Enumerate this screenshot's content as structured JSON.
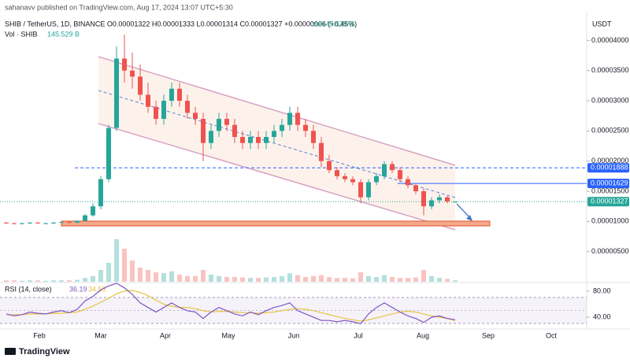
{
  "chart_data": {
    "type": "candlestick",
    "published": "sahanavv published on TradingView.com, Aug 17, 2024 13:07 UTC+5:30",
    "header": "SHIB / TetherUS, 1D, BINANCE  O0.00001322 H0.00001333 L0.00001314 C0.00001327 +0.00000006 (+0.45%)",
    "header_volume": "Vol145.529 B",
    "volume_label": "Vol · SHIB",
    "volume_value": "145.529 B",
    "currency": "USDT",
    "up_color": "#26a69a",
    "down_color": "#ef5350",
    "candles": {
      "open": [
        9.8e-06,
        9.7e-06,
        9.6e-06,
        9.7e-06,
        9.8e-06,
        9.7e-06,
        9.7e-06,
        9.8e-06,
        9.9e-06,
        9.8e-06,
        1.01e-05,
        1.1e-05,
        1.25e-05,
        1.7e-05,
        2.55e-05,
        3.7e-05,
        3.5e-05,
        3.4e-05,
        3.1e-05,
        2.9e-05,
        2.7e-05,
        3e-05,
        3.2e-05,
        3e-05,
        2.8e-05,
        2.7e-05,
        2.3e-05,
        2.5e-05,
        2.7e-05,
        2.6e-05,
        2.4e-05,
        2.3e-05,
        2.4e-05,
        2.3e-05,
        2.4e-05,
        2.5e-05,
        2.6e-05,
        2.8e-05,
        2.6e-05,
        2.5e-05,
        2.3e-05,
        2e-05,
        1.85e-05,
        1.75e-05,
        1.7e-05,
        1.65e-05,
        1.4e-05,
        1.65e-05,
        1.75e-05,
        1.95e-05,
        1.85e-05,
        1.7e-05,
        1.6e-05,
        1.5e-05,
        1.25e-05,
        1.35e-05,
        1.4e-05,
        1.322e-05
      ],
      "high": [
        9.9e-06,
        9.8e-06,
        9.8e-06,
        9.9e-06,
        9.9e-06,
        9.8e-06,
        9.9e-06,
        1e-05,
        1e-05,
        1.02e-05,
        1.12e-05,
        1.3e-05,
        1.75e-05,
        2.6e-05,
        3.9e-05,
        4.1e-05,
        3.8e-05,
        3.6e-05,
        3.3e-05,
        3e-05,
        3.1e-05,
        3.3e-05,
        3.3e-05,
        3.1e-05,
        2.9e-05,
        2.8e-05,
        2.6e-05,
        2.8e-05,
        2.8e-05,
        2.7e-05,
        2.5e-05,
        2.5e-05,
        2.5e-05,
        2.5e-05,
        2.6e-05,
        2.7e-05,
        2.9e-05,
        2.9e-05,
        2.7e-05,
        2.6e-05,
        2.4e-05,
        2.1e-05,
        1.9e-05,
        1.8e-05,
        1.75e-05,
        1.7e-05,
        1.7e-05,
        1.8e-05,
        2e-05,
        2e-05,
        1.9e-05,
        1.75e-05,
        1.62e-05,
        1.55e-05,
        1.4e-05,
        1.45e-05,
        1.42e-05,
        1.333e-05
      ],
      "low": [
        9.6e-06,
        9.5e-06,
        9.5e-06,
        9.6e-06,
        9.6e-06,
        9.6e-06,
        9.6e-06,
        9.7e-06,
        9.7e-06,
        9.7e-06,
        1e-05,
        1.08e-05,
        1.2e-05,
        1.65e-05,
        2.5e-05,
        3.3e-05,
        3.2e-05,
        3e-05,
        2.8e-05,
        2.6e-05,
        2.6e-05,
        2.9e-05,
        2.9e-05,
        2.7e-05,
        2.6e-05,
        2e-05,
        2.2e-05,
        2.4e-05,
        2.5e-05,
        2.3e-05,
        2.2e-05,
        2.2e-05,
        2.2e-05,
        2.2e-05,
        2.3e-05,
        2.4e-05,
        2.5e-05,
        2.5e-05,
        2.4e-05,
        2.2e-05,
        1.9e-05,
        1.8e-05,
        1.7e-05,
        1.65e-05,
        1.6e-05,
        1.3e-05,
        1.35e-05,
        1.6e-05,
        1.7e-05,
        1.8e-05,
        1.65e-05,
        1.55e-05,
        1.45e-05,
        1.1e-05,
        1.2e-05,
        1.3e-05,
        1.3e-05,
        1.314e-05
      ],
      "close": [
        9.7e-06,
        9.6e-06,
        9.7e-06,
        9.8e-06,
        9.7e-06,
        9.7e-06,
        9.8e-06,
        9.9e-06,
        9.8e-06,
        1.01e-05,
        1.1e-05,
        1.25e-05,
        1.7e-05,
        2.55e-05,
        3.7e-05,
        3.5e-05,
        3.4e-05,
        3.1e-05,
        2.9e-05,
        2.7e-05,
        3e-05,
        3.2e-05,
        3e-05,
        2.8e-05,
        2.7e-05,
        2.3e-05,
        2.5e-05,
        2.7e-05,
        2.6e-05,
        2.4e-05,
        2.3e-05,
        2.4e-05,
        2.3e-05,
        2.4e-05,
        2.5e-05,
        2.6e-05,
        2.8e-05,
        2.6e-05,
        2.5e-05,
        2.3e-05,
        2e-05,
        1.85e-05,
        1.75e-05,
        1.7e-05,
        1.65e-05,
        1.4e-05,
        1.65e-05,
        1.75e-05,
        1.95e-05,
        1.85e-05,
        1.7e-05,
        1.6e-05,
        1.5e-05,
        1.25e-05,
        1.35e-05,
        1.4e-05,
        1.33e-05,
        1.327e-05
      ]
    },
    "volumes": [
      3,
      3,
      2,
      3,
      3,
      2,
      3,
      3,
      3,
      4,
      8,
      12,
      25,
      40,
      90,
      70,
      45,
      30,
      25,
      20,
      18,
      22,
      15,
      12,
      12,
      25,
      15,
      12,
      10,
      10,
      9,
      8,
      8,
      9,
      10,
      12,
      18,
      14,
      10,
      12,
      14,
      10,
      8,
      8,
      7,
      20,
      12,
      10,
      14,
      10,
      8,
      8,
      9,
      25,
      12,
      8,
      6,
      3
    ],
    "ylim": [
      0,
      4.54e-05
    ],
    "yticks": [
      {
        "value": 4e-05,
        "label": "0.00004000"
      },
      {
        "value": 3.5e-05,
        "label": "0.00003500"
      },
      {
        "value": 3e-05,
        "label": "0.00003000"
      },
      {
        "value": 2.5e-05,
        "label": "0.00002500"
      },
      {
        "value": 2e-05,
        "label": "0.00002000"
      },
      {
        "value": 1.5e-05,
        "label": "0.00001500"
      },
      {
        "value": 1e-05,
        "label": "0.00001000"
      },
      {
        "value": 5e-06,
        "label": "0.00000500"
      }
    ],
    "price_lines": [
      {
        "value": 1.888e-05,
        "label": "0.00001888",
        "color": "#2962ff"
      },
      {
        "value": 1.629e-05,
        "label": "0.00001629",
        "color": "#2962ff"
      },
      {
        "value": 1.327e-05,
        "label": "0.00001327",
        "color": "#26a69a"
      }
    ],
    "rsi": {
      "label": "RSI (14, close)",
      "color": "#7e57c2",
      "ma_color": "#e8c340",
      "values": [
        45,
        42,
        44,
        48,
        46,
        45,
        48,
        50,
        47,
        52,
        65,
        72,
        82,
        88,
        92,
        85,
        75,
        62,
        55,
        48,
        55,
        62,
        55,
        50,
        48,
        38,
        48,
        55,
        50,
        45,
        42,
        48,
        44,
        50,
        55,
        58,
        62,
        50,
        45,
        40,
        35,
        35,
        33,
        35,
        33,
        30,
        45,
        55,
        62,
        55,
        48,
        42,
        38,
        32,
        40,
        42,
        38,
        36.19
      ],
      "ma": [
        44,
        44,
        44,
        45,
        45,
        45,
        46,
        46,
        47,
        48,
        52,
        57,
        63,
        69,
        76,
        80,
        81,
        78,
        73,
        66,
        60,
        57,
        55,
        55,
        53,
        50,
        48,
        49,
        49,
        48,
        47,
        47,
        46,
        47,
        48,
        50,
        52,
        53,
        52,
        50,
        47,
        44,
        41,
        38,
        36,
        34,
        36,
        39,
        42,
        45,
        48,
        49,
        48,
        45,
        42,
        40,
        38,
        34.53
      ],
      "ylim": [
        22,
        92
      ],
      "yticks": [
        {
          "value": 80,
          "label": "80.00"
        },
        {
          "value": 40,
          "label": "40.00"
        }
      ]
    },
    "months": [
      "Feb",
      "Mar",
      "Apr",
      "May",
      "Jun",
      "Jul",
      "Aug",
      "Sep",
      "Oct"
    ],
    "brand": "TradingView"
  }
}
